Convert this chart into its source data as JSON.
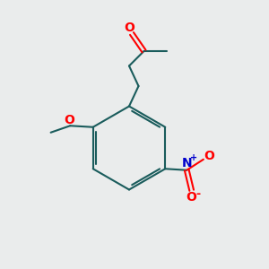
{
  "bg_color": "#eaecec",
  "bond_color": "#1a5c5c",
  "bond_width": 1.5,
  "O_color": "#ff0000",
  "N_color": "#0000cc",
  "font_size": 9,
  "figsize": [
    3.0,
    3.0
  ],
  "dpi": 100,
  "xlim": [
    0,
    10
  ],
  "ylim": [
    0,
    10
  ]
}
